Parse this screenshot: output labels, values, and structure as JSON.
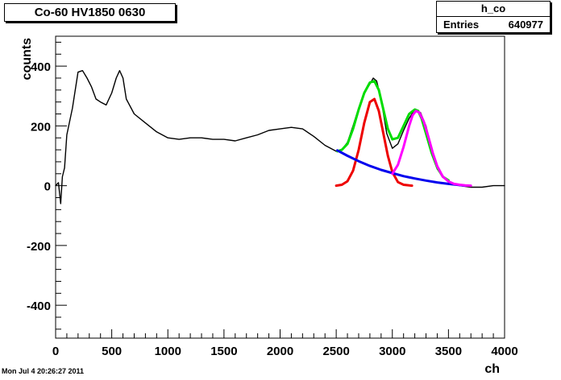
{
  "chart_data": {
    "type": "line",
    "title": "Co-60 HV1850 0630",
    "xlabel": "ch",
    "ylabel": "counts",
    "xlim": [
      0,
      4000
    ],
    "ylim": [
      -510,
      500
    ],
    "x_ticks": [
      "0",
      "500",
      "1000",
      "1500",
      "2000",
      "2500",
      "3000",
      "3500",
      "4000"
    ],
    "y_ticks": [
      "-400",
      "-200",
      "0",
      "200",
      "400"
    ],
    "grid": false,
    "stats": {
      "name": "h_co",
      "entries_label": "Entries",
      "entries_value": "640977"
    },
    "series": [
      {
        "color": "#000000",
        "x": [
          0,
          25,
          45,
          60,
          80,
          100,
          150,
          200,
          240,
          280,
          320,
          360,
          400,
          450,
          500,
          540,
          570,
          600,
          630,
          700,
          800,
          900,
          1000,
          1100,
          1200,
          1300,
          1400,
          1500,
          1600,
          1700,
          1800,
          1900,
          2000,
          2100,
          2200,
          2300,
          2400,
          2500,
          2550,
          2600,
          2650,
          2700,
          2750,
          2800,
          2830,
          2860,
          2900,
          2950,
          3000,
          3050,
          3100,
          3150,
          3200,
          3250,
          3300,
          3350,
          3400,
          3500,
          3600,
          3700,
          3800,
          3900,
          4000
        ],
        "y": [
          0,
          10,
          -60,
          30,
          60,
          170,
          260,
          380,
          385,
          360,
          330,
          290,
          280,
          270,
          310,
          360,
          385,
          360,
          290,
          240,
          210,
          180,
          160,
          155,
          160,
          160,
          155,
          155,
          150,
          160,
          170,
          185,
          190,
          195,
          190,
          165,
          135,
          115,
          120,
          145,
          200,
          260,
          310,
          340,
          360,
          350,
          290,
          175,
          125,
          140,
          185,
          225,
          255,
          245,
          200,
          125,
          55,
          12,
          0,
          -5,
          -5,
          0,
          0
        ]
      },
      {
        "color": "#00dd00",
        "x": [
          2510,
          2550,
          2600,
          2650,
          2700,
          2750,
          2800,
          2840,
          2880,
          2920,
          2960,
          3000,
          3050,
          3100,
          3150,
          3200,
          3230,
          3260,
          3300,
          3350,
          3400,
          3450,
          3500
        ],
        "y": [
          115,
          120,
          140,
          190,
          255,
          310,
          345,
          350,
          320,
          255,
          190,
          155,
          160,
          200,
          240,
          255,
          250,
          225,
          175,
          110,
          60,
          30,
          18
        ]
      },
      {
        "color": "#ee0000",
        "x": [
          2500,
          2550,
          2600,
          2650,
          2700,
          2750,
          2800,
          2840,
          2880,
          2920,
          2960,
          3000,
          3050,
          3100,
          3150,
          3175
        ],
        "y": [
          0,
          3,
          15,
          50,
          120,
          210,
          280,
          290,
          250,
          175,
          100,
          45,
          12,
          3,
          1,
          0
        ]
      },
      {
        "color": "#0000ee",
        "x": [
          2510,
          2600,
          2700,
          2800,
          2900,
          3000,
          3100,
          3200,
          3300,
          3400,
          3500,
          3600,
          3650
        ],
        "y": [
          118,
          100,
          82,
          66,
          53,
          42,
          32,
          24,
          17,
          11,
          6,
          2,
          0
        ]
      },
      {
        "color": "#ff00ff",
        "x": [
          3000,
          3050,
          3100,
          3150,
          3180,
          3210,
          3240,
          3280,
          3320,
          3360,
          3400,
          3450,
          3500,
          3550,
          3600,
          3650,
          3700
        ],
        "y": [
          40,
          70,
          130,
          200,
          235,
          250,
          245,
          215,
          165,
          110,
          65,
          30,
          14,
          6,
          3,
          1,
          0
        ]
      }
    ]
  },
  "footer": {
    "timestamp": "Mon Jul  4 20:26:27 2011"
  }
}
